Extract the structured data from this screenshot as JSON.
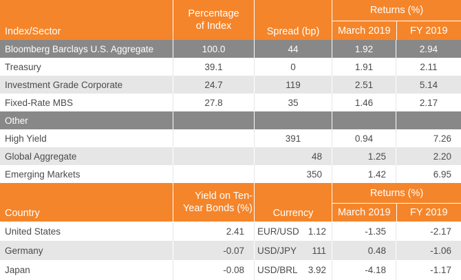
{
  "table1": {
    "header": {
      "index_sector": "Index/Sector",
      "percentage_of_index": "Percentage of Index",
      "spread": "Spread (bp)",
      "returns_group": "Returns (%)",
      "march_2019": "March 2019",
      "fy_2019": "FY 2019"
    },
    "aggregate_row": {
      "name": "Bloomberg Barclays U.S. Aggregate",
      "pct": "100.0",
      "spread": "44",
      "march": "1.92",
      "fy": "2.94"
    },
    "rows": [
      {
        "name": "Treasury",
        "pct": "39.1",
        "spread": "0",
        "march": "1.91",
        "fy": "2.11"
      },
      {
        "name": "Investment Grade Corporate",
        "pct": "24.7",
        "spread": "119",
        "march": "2.51",
        "fy": "5.14"
      },
      {
        "name": "Fixed-Rate MBS",
        "pct": "27.8",
        "spread": "35",
        "march": "1.46",
        "fy": "2.17"
      }
    ],
    "other_label": "Other",
    "other_rows": [
      {
        "name": "High Yield",
        "pct": "",
        "spread": "391",
        "march": "0.94",
        "fy": "7.26"
      },
      {
        "name": "Global Aggregate",
        "pct": "",
        "spread": "48",
        "march": "1.25",
        "fy": "2.20"
      },
      {
        "name": "Emerging Markets",
        "pct": "",
        "spread": "350",
        "march": "1.42",
        "fy": "6.95"
      }
    ]
  },
  "table2": {
    "header": {
      "country": "Country",
      "yield": "Yield on Ten-Year Bonds (%)",
      "currency": "Currency",
      "returns_group": "Returns (%)",
      "march_2019": "March 2019",
      "fy_2019": "FY 2019"
    },
    "rows": [
      {
        "country": "United States",
        "yield": "2.41",
        "currency": "EUR/USD",
        "rate": "1.12",
        "march": "-1.35",
        "fy": "-2.17"
      },
      {
        "country": "Germany",
        "yield": "-0.07",
        "currency": "USD/JPY",
        "rate": "111",
        "march": "0.48",
        "fy": "-1.06"
      },
      {
        "country": "Japan",
        "yield": "-0.08",
        "currency": "USD/BRL",
        "rate": "3.92",
        "march": "-4.18",
        "fy": "-1.17"
      }
    ]
  },
  "colors": {
    "header_orange": "#f5852a",
    "band_grey": "#888888",
    "row_alt": "#e6e6e6"
  }
}
